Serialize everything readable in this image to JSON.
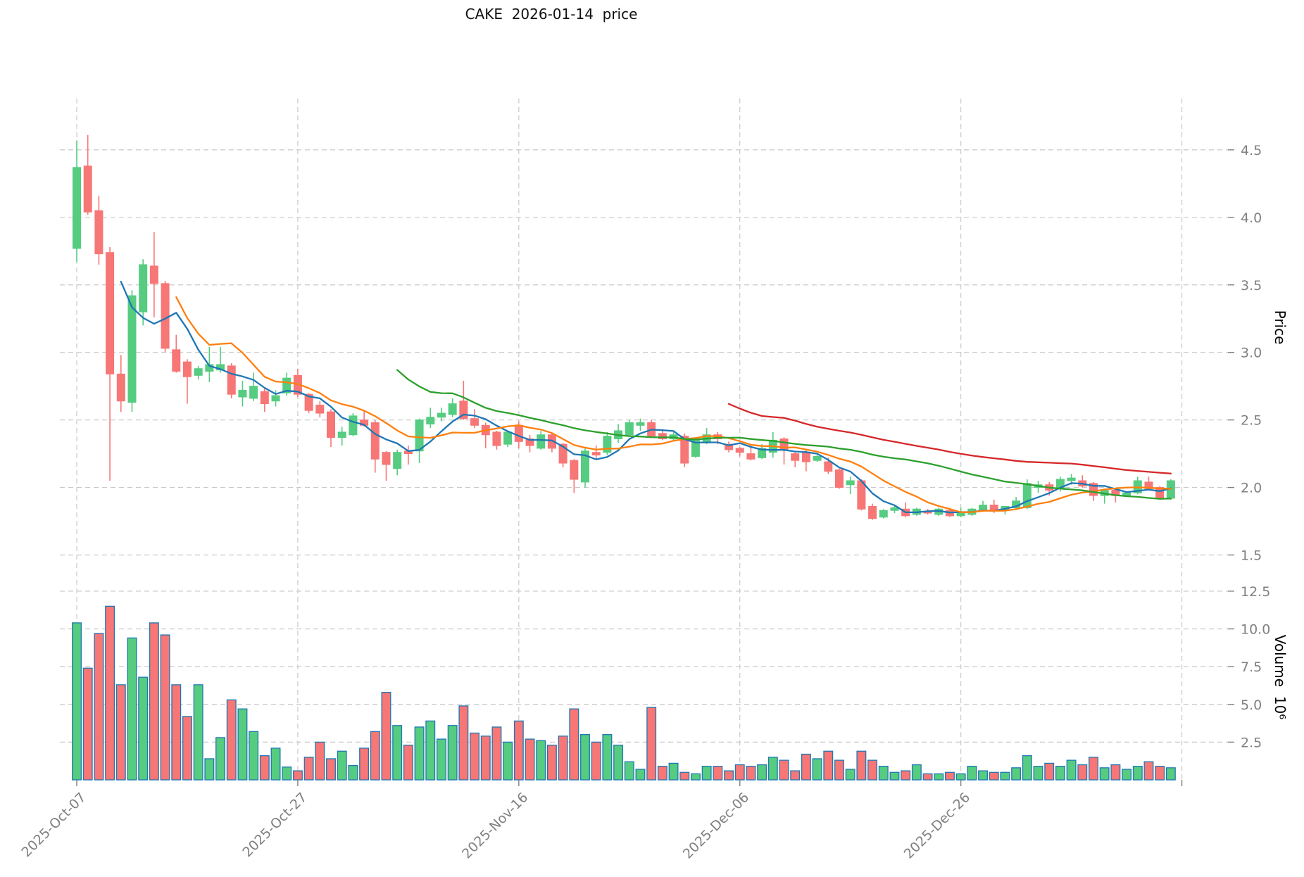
{
  "title": "CAKE  2026-01-14  price",
  "chart_data": {
    "type": "candlestick",
    "title": "CAKE  2026-01-14  price",
    "grid": true,
    "legend": "none",
    "price_axis": {
      "label": "Price",
      "side": "right",
      "min": 1.44,
      "max": 4.88,
      "ticks": [
        4.5,
        4.0,
        3.5,
        3.0,
        2.5,
        2.0,
        1.5
      ],
      "tick_labels": [
        "4.5",
        "4.0",
        "3.5",
        "3.0",
        "2.5",
        "2.0",
        "1.5"
      ]
    },
    "volume_axis": {
      "label": "Volume  10⁶",
      "side": "right",
      "min": 0,
      "max": 13.8,
      "unit": "millions",
      "ticks": [
        2.5,
        5.0,
        7.5,
        10.0,
        12.5
      ],
      "tick_labels": [
        "2.5",
        "5.0",
        "7.5",
        "10.0",
        "12.5"
      ]
    },
    "x_axis": {
      "tick_day_indices": [
        0,
        20,
        40,
        60,
        80,
        100
      ],
      "tick_labels": [
        "2025-Oct-07",
        "2025-Oct-27",
        "2025-Nov-16",
        "2025-Dec-06",
        "2025-Dec-26",
        ""
      ],
      "label_rotation_deg": 45
    },
    "moving_averages": [
      {
        "name": "ma5",
        "period": 5,
        "color": "#1f77b4"
      },
      {
        "name": "ma10",
        "period": 10,
        "color": "#ff7f0e"
      },
      {
        "name": "ma30",
        "period": 30,
        "color": "#2ca02c"
      },
      {
        "name": "ma60",
        "period": 60,
        "color": "#d62728"
      }
    ],
    "colors": {
      "up": "#55cc80",
      "down": "#f77676",
      "volume_edge": "#1f77b4",
      "grid": "#c9c9c9",
      "tick_text": "#808080",
      "background": "#ffffff"
    },
    "dates": [
      "2025-10-07",
      "2025-10-08",
      "2025-10-09",
      "2025-10-10",
      "2025-10-11",
      "2025-10-12",
      "2025-10-13",
      "2025-10-14",
      "2025-10-15",
      "2025-10-16",
      "2025-10-17",
      "2025-10-18",
      "2025-10-19",
      "2025-10-20",
      "2025-10-21",
      "2025-10-22",
      "2025-10-23",
      "2025-10-24",
      "2025-10-25",
      "2025-10-26",
      "2025-10-27",
      "2025-10-28",
      "2025-10-29",
      "2025-10-30",
      "2025-10-31",
      "2025-11-01",
      "2025-11-02",
      "2025-11-03",
      "2025-11-04",
      "2025-11-05",
      "2025-11-06",
      "2025-11-07",
      "2025-11-08",
      "2025-11-09",
      "2025-11-10",
      "2025-11-11",
      "2025-11-12",
      "2025-11-13",
      "2025-11-14",
      "2025-11-15",
      "2025-11-16",
      "2025-11-17",
      "2025-11-18",
      "2025-11-19",
      "2025-11-20",
      "2025-11-21",
      "2025-11-22",
      "2025-11-23",
      "2025-11-24",
      "2025-11-25",
      "2025-11-26",
      "2025-11-27",
      "2025-11-28",
      "2025-11-29",
      "2025-11-30",
      "2025-12-01",
      "2025-12-02",
      "2025-12-03",
      "2025-12-04",
      "2025-12-05",
      "2025-12-06",
      "2025-12-07",
      "2025-12-08",
      "2025-12-09",
      "2025-12-10",
      "2025-12-11",
      "2025-12-12",
      "2025-12-13",
      "2025-12-14",
      "2025-12-15",
      "2025-12-16",
      "2025-12-17",
      "2025-12-18",
      "2025-12-19",
      "2025-12-20",
      "2025-12-21",
      "2025-12-22",
      "2025-12-23",
      "2025-12-24",
      "2025-12-25",
      "2025-12-26",
      "2025-12-27",
      "2025-12-28",
      "2025-12-29",
      "2025-12-30",
      "2025-12-31",
      "2026-01-01",
      "2026-01-02",
      "2026-01-03",
      "2026-01-04",
      "2026-01-05",
      "2026-01-06",
      "2026-01-07",
      "2026-01-08",
      "2026-01-09",
      "2026-01-10",
      "2026-01-11",
      "2026-01-12",
      "2026-01-13",
      "2026-01-14"
    ],
    "open": [
      3.77,
      4.38,
      4.05,
      3.74,
      2.84,
      2.63,
      3.3,
      3.64,
      3.51,
      3.02,
      2.93,
      2.83,
      2.86,
      2.87,
      2.9,
      2.67,
      2.66,
      2.71,
      2.64,
      2.7,
      2.83,
      2.69,
      2.61,
      2.56,
      2.37,
      2.39,
      2.5,
      2.48,
      2.26,
      2.14,
      2.27,
      2.27,
      2.47,
      2.52,
      2.54,
      2.64,
      2.51,
      2.46,
      2.41,
      2.32,
      2.46,
      2.36,
      2.29,
      2.39,
      2.32,
      2.2,
      2.04,
      2.26,
      2.26,
      2.36,
      2.39,
      2.46,
      2.48,
      2.4,
      2.36,
      2.38,
      2.23,
      2.33,
      2.39,
      2.32,
      2.29,
      2.25,
      2.22,
      2.26,
      2.36,
      2.25,
      2.26,
      2.2,
      2.19,
      2.13,
      2.02,
      2.05,
      1.86,
      1.78,
      1.83,
      1.84,
      1.8,
      1.82,
      1.8,
      1.83,
      1.79,
      1.8,
      1.83,
      1.87,
      1.83,
      1.85,
      1.85,
      2.0,
      2.02,
      1.99,
      2.05,
      2.05,
      2.03,
      1.94,
      1.98,
      1.94,
      1.96,
      2.04,
      2.0,
      1.92
    ],
    "high": [
      4.57,
      4.61,
      4.16,
      3.78,
      2.98,
      3.46,
      3.69,
      3.89,
      3.53,
      3.13,
      2.95,
      2.9,
      3.04,
      3.04,
      2.92,
      2.79,
      2.85,
      2.73,
      2.72,
      2.85,
      2.88,
      2.7,
      2.64,
      2.58,
      2.45,
      2.55,
      2.57,
      2.5,
      2.27,
      2.28,
      2.31,
      2.51,
      2.59,
      2.59,
      2.66,
      2.79,
      2.58,
      2.48,
      2.42,
      2.42,
      2.49,
      2.39,
      2.42,
      2.4,
      2.33,
      2.21,
      2.29,
      2.31,
      2.41,
      2.47,
      2.5,
      2.51,
      2.5,
      2.42,
      2.41,
      2.4,
      2.37,
      2.44,
      2.41,
      2.34,
      2.3,
      2.31,
      2.32,
      2.41,
      2.37,
      2.26,
      2.28,
      2.24,
      2.22,
      2.14,
      2.08,
      2.06,
      1.88,
      1.84,
      1.87,
      1.89,
      1.85,
      1.84,
      1.85,
      1.84,
      1.85,
      1.85,
      1.9,
      1.91,
      1.86,
      1.93,
      2.06,
      2.05,
      2.04,
      2.08,
      2.1,
      2.09,
      2.04,
      1.99,
      1.99,
      1.97,
      2.08,
      2.08,
      2.01,
      2.06
    ],
    "low": [
      3.67,
      4.02,
      3.65,
      2.05,
      2.56,
      2.56,
      3.2,
      3.26,
      3.0,
      2.85,
      2.62,
      2.8,
      2.78,
      2.85,
      2.66,
      2.6,
      2.64,
      2.56,
      2.6,
      2.68,
      2.67,
      2.55,
      2.52,
      2.3,
      2.31,
      2.38,
      2.45,
      2.11,
      2.05,
      2.09,
      2.17,
      2.18,
      2.44,
      2.49,
      2.52,
      2.5,
      2.44,
      2.29,
      2.28,
      2.3,
      2.29,
      2.26,
      2.28,
      2.26,
      2.15,
      1.96,
      2.0,
      2.21,
      2.24,
      2.33,
      2.38,
      2.42,
      2.37,
      2.35,
      2.35,
      2.15,
      2.22,
      2.32,
      2.32,
      2.26,
      2.23,
      2.2,
      2.21,
      2.22,
      2.17,
      2.15,
      2.12,
      2.19,
      2.1,
      1.99,
      1.95,
      1.83,
      1.76,
      1.77,
      1.81,
      1.78,
      1.79,
      1.8,
      1.79,
      1.78,
      1.78,
      1.79,
      1.82,
      1.81,
      1.8,
      1.84,
      1.84,
      1.96,
      1.94,
      1.97,
      2.02,
      2.0,
      1.9,
      1.88,
      1.89,
      1.93,
      1.95,
      1.98,
      1.91,
      1.91
    ],
    "close": [
      4.37,
      4.04,
      3.73,
      2.84,
      2.64,
      3.42,
      3.65,
      3.51,
      3.03,
      2.86,
      2.82,
      2.88,
      2.91,
      2.91,
      2.69,
      2.72,
      2.75,
      2.62,
      2.68,
      2.81,
      2.69,
      2.57,
      2.55,
      2.37,
      2.41,
      2.53,
      2.46,
      2.21,
      2.17,
      2.26,
      2.25,
      2.5,
      2.52,
      2.55,
      2.62,
      2.51,
      2.46,
      2.39,
      2.31,
      2.41,
      2.34,
      2.31,
      2.39,
      2.29,
      2.18,
      2.06,
      2.27,
      2.24,
      2.38,
      2.42,
      2.48,
      2.48,
      2.38,
      2.36,
      2.39,
      2.18,
      2.35,
      2.39,
      2.36,
      2.28,
      2.26,
      2.21,
      2.29,
      2.35,
      2.28,
      2.2,
      2.19,
      2.23,
      2.12,
      2.0,
      2.05,
      1.84,
      1.77,
      1.83,
      1.85,
      1.79,
      1.84,
      1.81,
      1.84,
      1.79,
      1.81,
      1.84,
      1.87,
      1.83,
      1.86,
      1.9,
      2.03,
      2.02,
      1.98,
      2.06,
      2.07,
      2.01,
      1.94,
      1.98,
      1.94,
      1.96,
      2.05,
      1.99,
      1.92,
      2.05
    ],
    "volume_millions": [
      10.4,
      7.4,
      9.7,
      11.5,
      6.3,
      9.4,
      6.8,
      10.4,
      9.6,
      6.3,
      4.2,
      6.3,
      1.4,
      2.8,
      5.3,
      4.7,
      3.2,
      1.6,
      2.1,
      0.85,
      0.6,
      1.5,
      2.5,
      1.4,
      1.9,
      0.95,
      2.1,
      3.2,
      5.8,
      3.6,
      2.3,
      3.5,
      3.9,
      2.7,
      3.6,
      4.9,
      3.1,
      2.9,
      3.5,
      2.5,
      3.9,
      2.7,
      2.6,
      2.3,
      2.9,
      4.7,
      3.0,
      2.5,
      3.0,
      2.3,
      1.2,
      0.7,
      4.8,
      0.9,
      1.1,
      0.5,
      0.4,
      0.9,
      0.9,
      0.6,
      1.0,
      0.9,
      1.0,
      1.5,
      1.3,
      0.6,
      1.7,
      1.4,
      1.9,
      1.3,
      0.7,
      1.9,
      1.3,
      0.9,
      0.5,
      0.6,
      1.0,
      0.4,
      0.4,
      0.5,
      0.4,
      0.9,
      0.6,
      0.5,
      0.5,
      0.8,
      1.6,
      0.9,
      1.1,
      0.9,
      1.3,
      1.0,
      1.5,
      0.8,
      1.0,
      0.7,
      0.9,
      1.2,
      0.9,
      0.8
    ]
  }
}
